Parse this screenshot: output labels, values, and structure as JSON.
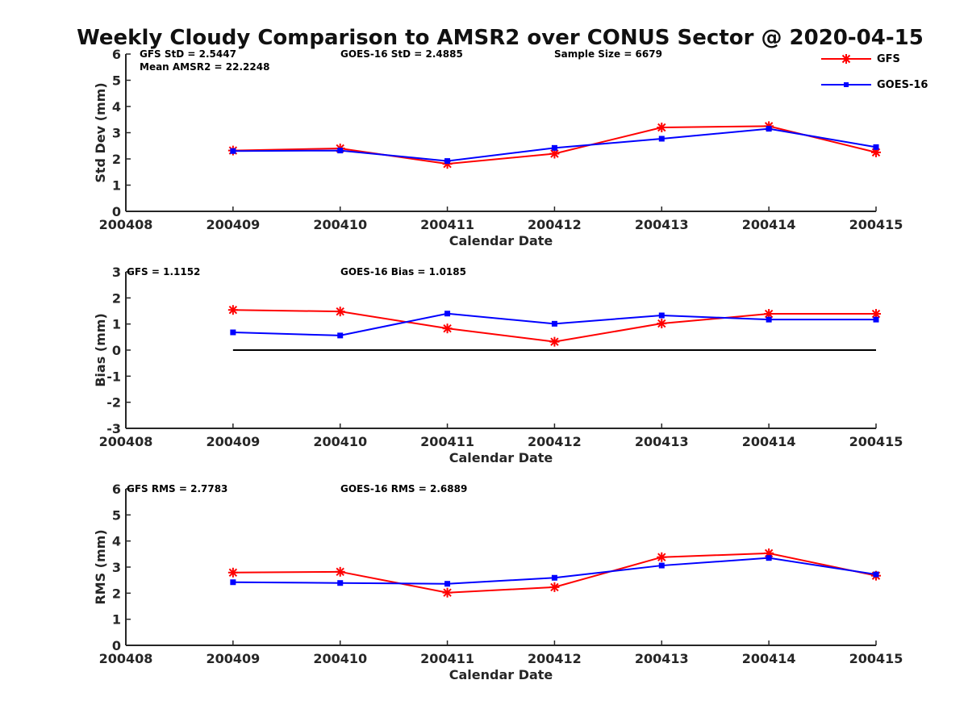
{
  "figure_title": "Weekly Cloudy Comparison to AMSR2 over CONUS Sector @ 2020-04-15",
  "legend": [
    {
      "label": "GFS",
      "color": "#ff0000",
      "marker": "asterisk"
    },
    {
      "label": "GOES-16",
      "color": "#0000ff",
      "marker": "square"
    }
  ],
  "chart_data": [
    {
      "type": "line",
      "id": "stddev",
      "xlabel": "Calendar Date",
      "ylabel": "Std Dev (mm)",
      "categories": [
        "200408",
        "200409",
        "200410",
        "200411",
        "200412",
        "200413",
        "200414",
        "200415"
      ],
      "ylim": [
        0,
        6
      ],
      "yticks": [
        "0",
        "1",
        "2",
        "3",
        "4",
        "5",
        "6"
      ],
      "annotations": [
        "GFS StD = 2.5447",
        "Mean AMSR2 = 22.2248",
        "GOES-16 StD = 2.4885",
        "Sample Size = 6679"
      ],
      "series": [
        {
          "name": "GFS",
          "color": "#ff0000",
          "marker": "asterisk",
          "x": [
            "200409",
            "200410",
            "200411",
            "200412",
            "200413",
            "200414",
            "200415"
          ],
          "values": [
            2.32,
            2.4,
            1.81,
            2.2,
            3.2,
            3.25,
            2.25
          ]
        },
        {
          "name": "GOES-16",
          "color": "#0000ff",
          "marker": "square",
          "x": [
            "200409",
            "200410",
            "200411",
            "200412",
            "200413",
            "200414",
            "200415"
          ],
          "values": [
            2.3,
            2.32,
            1.92,
            2.42,
            2.77,
            3.15,
            2.45
          ]
        }
      ]
    },
    {
      "type": "line",
      "id": "bias",
      "xlabel": "Calendar Date",
      "ylabel": "Bias (mm)",
      "categories": [
        "200408",
        "200409",
        "200410",
        "200411",
        "200412",
        "200413",
        "200414",
        "200415"
      ],
      "ylim": [
        -3,
        3
      ],
      "yticks": [
        "-3",
        "-2",
        "-1",
        "0",
        "1",
        "2",
        "3"
      ],
      "zero_line": true,
      "annotations": [
        "GFS = 1.1152",
        "GOES-16 Bias  = 1.0185"
      ],
      "series": [
        {
          "name": "GFS",
          "color": "#ff0000",
          "marker": "asterisk",
          "x": [
            "200409",
            "200410",
            "200411",
            "200412",
            "200413",
            "200414",
            "200415"
          ],
          "values": [
            1.54,
            1.48,
            0.83,
            0.32,
            1.02,
            1.39,
            1.39
          ]
        },
        {
          "name": "GOES-16",
          "color": "#0000ff",
          "marker": "square",
          "x": [
            "200409",
            "200410",
            "200411",
            "200412",
            "200413",
            "200414",
            "200415"
          ],
          "values": [
            0.68,
            0.56,
            1.4,
            1.01,
            1.33,
            1.17,
            1.17
          ]
        }
      ]
    },
    {
      "type": "line",
      "id": "rms",
      "xlabel": "Calendar Date",
      "ylabel": "RMS (mm)",
      "categories": [
        "200408",
        "200409",
        "200410",
        "200411",
        "200412",
        "200413",
        "200414",
        "200415"
      ],
      "ylim": [
        0,
        6
      ],
      "yticks": [
        "0",
        "1",
        "2",
        "3",
        "4",
        "5",
        "6"
      ],
      "annotations": [
        "GFS RMS = 2.7783",
        "GOES-16 RMS = 2.6889"
      ],
      "series": [
        {
          "name": "GFS",
          "color": "#ff0000",
          "marker": "asterisk",
          "x": [
            "200409",
            "200410",
            "200411",
            "200412",
            "200413",
            "200414",
            "200415"
          ],
          "values": [
            2.79,
            2.82,
            2.02,
            2.23,
            3.38,
            3.53,
            2.67
          ]
        },
        {
          "name": "GOES-16",
          "color": "#0000ff",
          "marker": "square",
          "x": [
            "200409",
            "200410",
            "200411",
            "200412",
            "200413",
            "200414",
            "200415"
          ],
          "values": [
            2.42,
            2.39,
            2.36,
            2.59,
            3.06,
            3.35,
            2.72
          ]
        }
      ]
    }
  ]
}
